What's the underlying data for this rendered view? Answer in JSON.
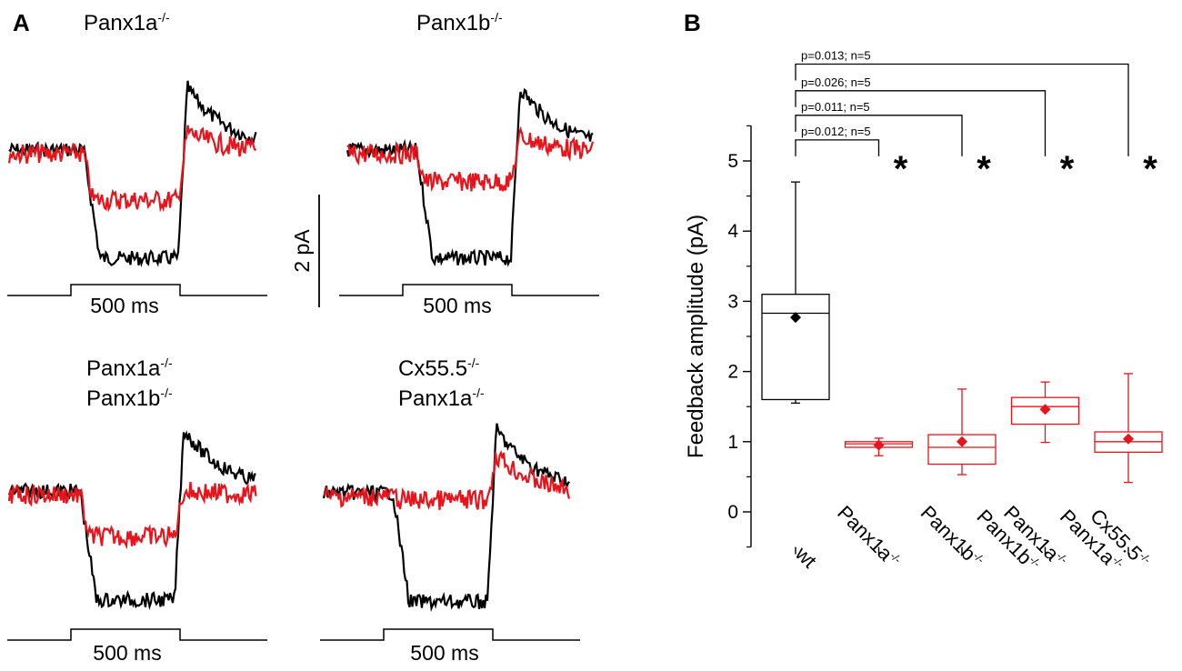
{
  "panel_a": {
    "letter": "A",
    "traces": [
      {
        "title": "Panx1a",
        "superscript": "-/-",
        "title2": "",
        "superscript2": "",
        "stim_label": "500 ms"
      },
      {
        "title": "Panx1b",
        "superscript": "-/-",
        "title2": "",
        "superscript2": "",
        "stim_label": "500 ms"
      },
      {
        "title": "Panx1a",
        "superscript": "-/-",
        "title2": "Panx1b",
        "superscript2": "-/-",
        "stim_label": "500 ms"
      },
      {
        "title": "Cx55.5",
        "superscript": "-/-",
        "title2": "Panx1a",
        "superscript2": "-/-",
        "stim_label": "500 ms"
      }
    ],
    "scale_bar": "2 pA",
    "colors": {
      "control": "#000000",
      "mutant": "#e8141c"
    }
  },
  "chart_data": {
    "type": "box",
    "panel_letter": "B",
    "ylabel": "Feedback amplitude (pA)",
    "ylim": [
      -0.5,
      5.5
    ],
    "yticks": [
      0,
      1,
      2,
      3,
      4,
      5
    ],
    "categories": [
      {
        "name": "wt",
        "line1": "wt",
        "sup1": "",
        "line2": "",
        "sup2": ""
      },
      {
        "name": "Panx1a-/-",
        "line1": "Panx1a",
        "sup1": "-/-",
        "line2": "",
        "sup2": ""
      },
      {
        "name": "Panx1b-/-",
        "line1": "Panx1b",
        "sup1": "-/-",
        "line2": "",
        "sup2": ""
      },
      {
        "name": "Panx1a-/- Panx1b-/-",
        "line1": "Panx1a",
        "sup1": "-/-",
        "line2": "Panx1b",
        "sup2": "-/-"
      },
      {
        "name": "Cx55.5-/- Panx1a-/-",
        "line1": "Cx55.5",
        "sup1": "-/-",
        "line2": "Panx1a",
        "sup2": "-/-"
      }
    ],
    "boxes": [
      {
        "min": 1.55,
        "q1": 1.6,
        "median": 2.83,
        "q3": 3.1,
        "max": 4.7,
        "mean": 2.77,
        "color": "#000000"
      },
      {
        "min": 0.8,
        "q1": 0.92,
        "median": 0.97,
        "q3": 1.0,
        "max": 1.05,
        "mean": 0.95,
        "color": "#e8141c"
      },
      {
        "min": 0.53,
        "q1": 0.68,
        "median": 0.92,
        "q3": 1.1,
        "max": 1.75,
        "mean": 1.0,
        "color": "#e8141c"
      },
      {
        "min": 0.99,
        "q1": 1.25,
        "median": 1.5,
        "q3": 1.63,
        "max": 1.85,
        "mean": 1.46,
        "color": "#e8141c"
      },
      {
        "min": 0.42,
        "q1": 0.85,
        "median": 1.0,
        "q3": 1.14,
        "max": 1.97,
        "mean": 1.04,
        "color": "#e8141c"
      }
    ],
    "comparisons": [
      {
        "from": 0,
        "to": 1,
        "label": "p=0.012; n=5",
        "level": 5.3
      },
      {
        "from": 0,
        "to": 2,
        "label": "p=0.011; n=5",
        "level": 5.65
      },
      {
        "from": 0,
        "to": 3,
        "label": "p=0.026; n=5",
        "level": 6.0
      },
      {
        "from": 0,
        "to": 4,
        "label": "p=0.013; n=5",
        "level": 6.38
      }
    ],
    "significance_marker": "*"
  }
}
